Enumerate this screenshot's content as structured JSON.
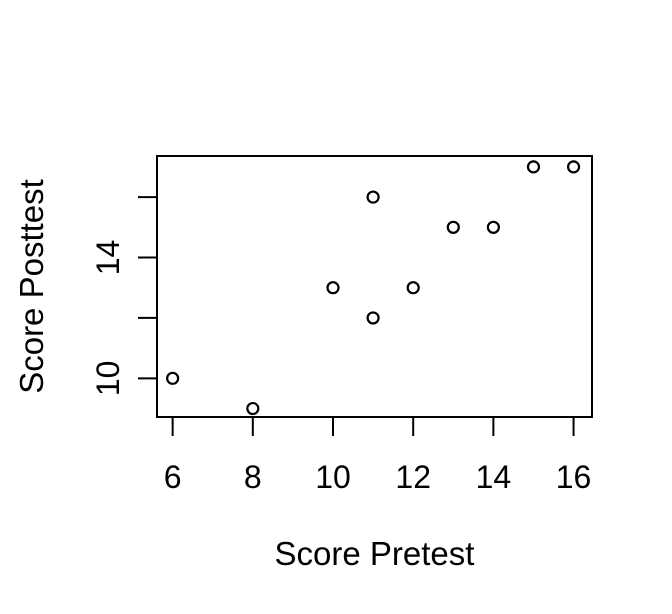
{
  "chart_data": {
    "type": "scatter",
    "title": "",
    "xlabel": "Score Pretest",
    "ylabel": "Score Posttest",
    "points": [
      {
        "x": 6,
        "y": 10
      },
      {
        "x": 8,
        "y": 9
      },
      {
        "x": 10,
        "y": 13
      },
      {
        "x": 11,
        "y": 12
      },
      {
        "x": 11,
        "y": 16
      },
      {
        "x": 12,
        "y": 13
      },
      {
        "x": 13,
        "y": 15
      },
      {
        "x": 14,
        "y": 15
      },
      {
        "x": 15,
        "y": 17
      },
      {
        "x": 16,
        "y": 17
      }
    ],
    "xticks": [
      {
        "value": 6,
        "label": "6"
      },
      {
        "value": 8,
        "label": "8"
      },
      {
        "value": 10,
        "label": "10"
      },
      {
        "value": 12,
        "label": "12"
      },
      {
        "value": 14,
        "label": "14"
      },
      {
        "value": 16,
        "label": "16"
      }
    ],
    "yticks": [
      {
        "value": 10,
        "label": "10"
      },
      {
        "value": 12,
        "label": ""
      },
      {
        "value": 14,
        "label": "14"
      },
      {
        "value": 16,
        "label": ""
      }
    ],
    "xlim": [
      5.61,
      16.46
    ],
    "ylim": [
      8.72,
      17.36
    ],
    "grid": false,
    "legend": null,
    "marker": "open-circle",
    "colors": {
      "foreground": "#000000",
      "background": "#ffffff"
    }
  }
}
